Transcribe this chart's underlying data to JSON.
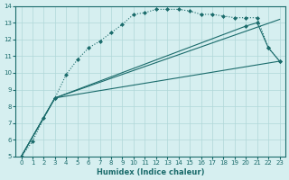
{
  "background_color": "#d6eff0",
  "grid_color": "#b0d8d8",
  "line_color": "#1a6b6b",
  "xlabel": "Humidex (Indice chaleur)",
  "xlim": [
    -0.5,
    23.5
  ],
  "ylim": [
    5,
    14
  ],
  "xticks": [
    0,
    1,
    2,
    3,
    4,
    5,
    6,
    7,
    8,
    9,
    10,
    11,
    12,
    13,
    14,
    15,
    16,
    17,
    18,
    19,
    20,
    21,
    22,
    23
  ],
  "yticks": [
    5,
    6,
    7,
    8,
    9,
    10,
    11,
    12,
    13,
    14
  ],
  "series": [
    {
      "x": [
        0,
        1,
        2,
        3,
        4,
        5,
        6,
        7,
        8,
        9,
        10,
        11,
        12,
        13,
        14,
        15,
        16,
        17,
        18,
        19,
        20,
        21,
        22,
        23
      ],
      "y": [
        5.0,
        5.9,
        7.3,
        8.5,
        9.9,
        10.8,
        11.5,
        11.9,
        12.4,
        12.9,
        13.5,
        13.6,
        13.8,
        13.8,
        13.8,
        13.7,
        13.5,
        13.5,
        13.4,
        13.3,
        13.3,
        13.3,
        11.5,
        10.7
      ],
      "linestyle": "dotted",
      "marker": "D",
      "markersize": 2.0
    },
    {
      "x": [
        0,
        3,
        23
      ],
      "y": [
        5.0,
        8.5,
        13.2
      ],
      "linestyle": "solid",
      "marker": "None",
      "markersize": 0
    },
    {
      "x": [
        0,
        3,
        20,
        21,
        22,
        23
      ],
      "y": [
        5.0,
        8.5,
        12.8,
        13.0,
        11.5,
        10.7
      ],
      "linestyle": "solid",
      "marker": "D",
      "markersize": 2.0
    },
    {
      "x": [
        0,
        3,
        23
      ],
      "y": [
        5.0,
        8.5,
        10.7
      ],
      "linestyle": "solid",
      "marker": "None",
      "markersize": 0
    }
  ]
}
